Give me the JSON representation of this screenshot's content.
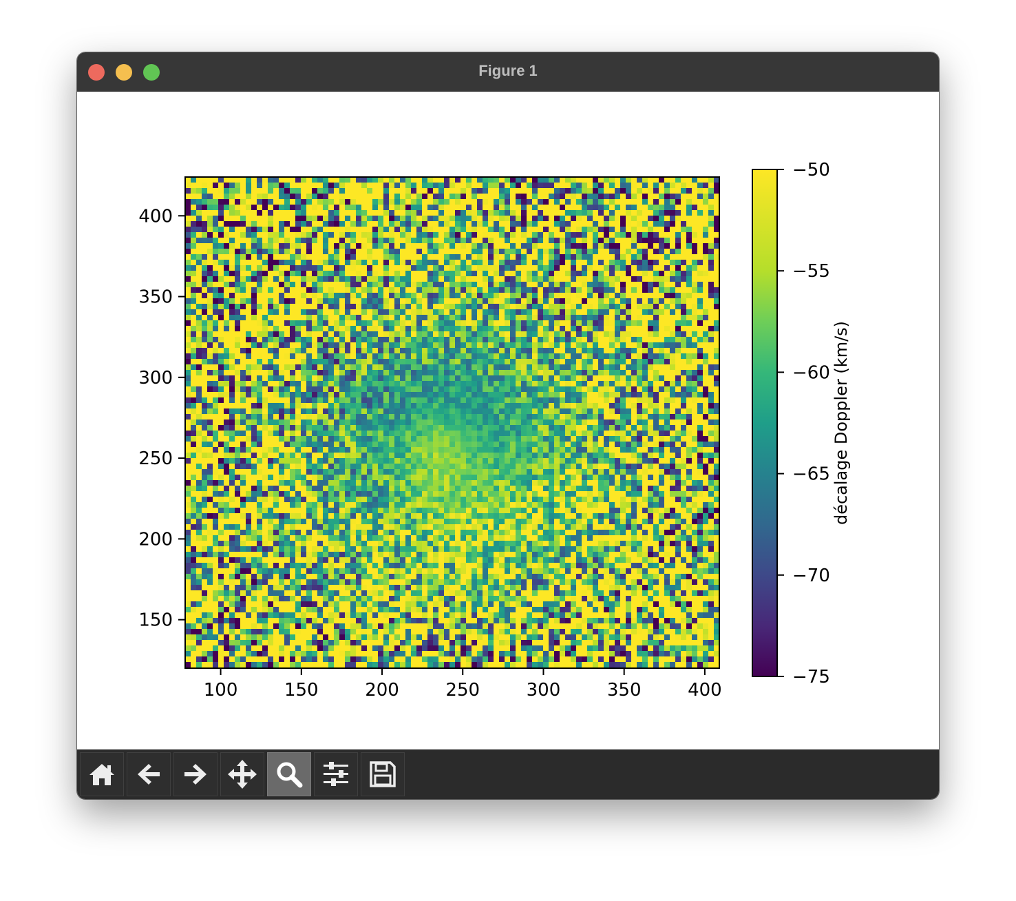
{
  "window": {
    "title": "Figure 1"
  },
  "toolbar": {
    "buttons": [
      {
        "name": "home-button",
        "icon": "home-icon"
      },
      {
        "name": "back-button",
        "icon": "arrow-left-icon"
      },
      {
        "name": "forward-button",
        "icon": "arrow-right-icon"
      },
      {
        "name": "pan-button",
        "icon": "move-arrows-icon"
      },
      {
        "name": "zoom-button",
        "icon": "magnifier-icon",
        "active": true
      },
      {
        "name": "configure-subplots-button",
        "icon": "sliders-icon"
      },
      {
        "name": "save-button",
        "icon": "floppy-disk-icon"
      }
    ]
  },
  "chart_data": {
    "type": "heatmap",
    "colormap": "viridis",
    "xlim": [
      78,
      409
    ],
    "ylim": [
      120,
      424
    ],
    "xticks": [
      100,
      150,
      200,
      250,
      300,
      350,
      400
    ],
    "yticks": [
      150,
      200,
      250,
      300,
      350,
      400
    ],
    "colorbar": {
      "vmin": -75,
      "vmax": -50,
      "ticks": [
        -50,
        -55,
        -60,
        -65,
        -70,
        -75
      ],
      "tick_labels": [
        "−50",
        "−55",
        "−60",
        "−65",
        "−70",
        "−75"
      ],
      "label": "décalage Doppler (km/s)"
    },
    "description": "Noisy Doppler shift map of a nebula: central blob around -60 to -66 km/s with dark (-70 to -75) patches near x 150-180, y 300 and x 280-340, y 330-360, and bright (-50 to -55) filaments around x 230-320, y 170-260; outer region is high-variance noise.",
    "grid": false
  },
  "colors": {
    "titlebar": "#373737",
    "toolbar": "#2b2b2b",
    "viridis_low": "#440154",
    "viridis_mid": "#21918c",
    "viridis_high": "#fde725"
  }
}
